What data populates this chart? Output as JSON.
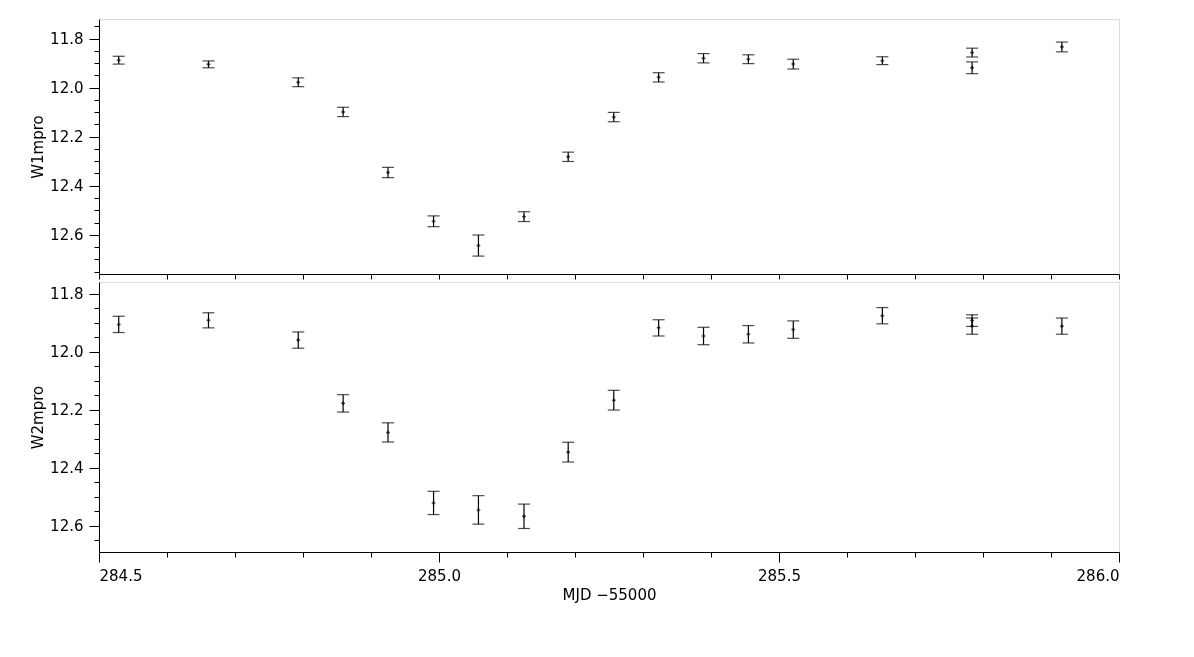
{
  "chart_data": [
    {
      "type": "scatter",
      "marker": "cross",
      "ylabel": "W1mpro",
      "tick_labels": "y",
      "grid": false,
      "x": [
        284.529,
        284.661,
        284.793,
        284.859,
        284.925,
        284.992,
        285.058,
        285.125,
        285.19,
        285.257,
        285.323,
        285.389,
        285.455,
        285.521,
        285.652,
        285.784,
        285.784,
        285.916
      ],
      "values": [
        11.888,
        11.905,
        11.978,
        12.099,
        12.346,
        12.545,
        12.644,
        12.526,
        12.282,
        12.12,
        11.958,
        11.88,
        11.884,
        11.904,
        11.89,
        11.857,
        11.919,
        11.834
      ],
      "errors": [
        0.016,
        0.014,
        0.018,
        0.019,
        0.021,
        0.022,
        0.043,
        0.02,
        0.019,
        0.019,
        0.019,
        0.019,
        0.018,
        0.02,
        0.016,
        0.018,
        0.024,
        0.02
      ],
      "xlim": [
        284.5,
        286.0
      ],
      "xticks": [
        {
          "value": 284.5,
          "label": null
        },
        {
          "value": 284.6,
          "label": null
        },
        {
          "value": 284.7,
          "label": null
        },
        {
          "value": 284.8,
          "label": null
        },
        {
          "value": 284.9,
          "label": null
        },
        {
          "value": 285,
          "label": null
        },
        {
          "value": 285.1,
          "label": null
        },
        {
          "value": 285.2,
          "label": null
        },
        {
          "value": 285.3,
          "label": null
        },
        {
          "value": 285.4,
          "label": null
        },
        {
          "value": 285.5,
          "label": null
        },
        {
          "value": 285.6,
          "label": null
        },
        {
          "value": 285.7,
          "label": null
        },
        {
          "value": 285.8,
          "label": null
        },
        {
          "value": 285.9,
          "label": null
        },
        {
          "value": 286,
          "label": null
        }
      ],
      "ylim": [
        12.76,
        11.72
      ],
      "yticks": [
        {
          "value": 11.75,
          "label": null
        },
        11.8,
        {
          "value": 11.85,
          "label": null
        },
        {
          "value": 11.9,
          "label": null
        },
        {
          "value": 11.95,
          "label": null
        },
        {
          "value": 12,
          "label": "12.0"
        },
        {
          "value": 12.05,
          "label": null
        },
        {
          "value": 12.1,
          "label": null
        },
        {
          "value": 12.15,
          "label": null
        },
        12.2,
        {
          "value": 12.25,
          "label": null
        },
        {
          "value": 12.3,
          "label": null
        },
        {
          "value": 12.35,
          "label": null
        },
        12.4,
        {
          "value": 12.45,
          "label": null
        },
        {
          "value": 12.5,
          "label": null
        },
        {
          "value": 12.55,
          "label": null
        },
        12.6,
        {
          "value": 12.65,
          "label": null
        },
        {
          "value": 12.7,
          "label": null
        },
        {
          "value": 12.75,
          "label": null
        }
      ]
    },
    {
      "type": "scatter",
      "marker": "cross",
      "ylabel": "W2mpro",
      "xlabel": "MJD −55000",
      "grid": false,
      "x": [
        284.529,
        284.661,
        284.793,
        284.859,
        284.925,
        284.992,
        285.058,
        285.125,
        285.19,
        285.257,
        285.323,
        285.389,
        285.455,
        285.521,
        285.652,
        285.784,
        285.784,
        285.916
      ],
      "values": [
        11.906,
        11.892,
        11.96,
        12.178,
        12.278,
        12.521,
        12.545,
        12.567,
        12.346,
        12.167,
        11.918,
        11.946,
        11.94,
        11.924,
        11.876,
        11.893,
        11.912,
        11.912
      ],
      "errors": [
        0.028,
        0.026,
        0.028,
        0.03,
        0.033,
        0.04,
        0.049,
        0.042,
        0.034,
        0.034,
        0.028,
        0.03,
        0.03,
        0.03,
        0.028,
        0.02,
        0.028,
        0.028
      ],
      "xlim": [
        284.5,
        286.0
      ],
      "xticks": [
        284.5,
        {
          "value": 284.6,
          "label": null
        },
        {
          "value": 284.7,
          "label": null
        },
        {
          "value": 284.8,
          "label": null
        },
        {
          "value": 284.9,
          "label": null
        },
        {
          "value": 285,
          "label": "285.0"
        },
        {
          "value": 285.1,
          "label": null
        },
        {
          "value": 285.2,
          "label": null
        },
        {
          "value": 285.3,
          "label": null
        },
        {
          "value": 285.4,
          "label": null
        },
        285.5,
        {
          "value": 285.6,
          "label": null
        },
        {
          "value": 285.7,
          "label": null
        },
        {
          "value": 285.8,
          "label": null
        },
        {
          "value": 285.9,
          "label": null
        },
        {
          "value": 286,
          "label": "286.0"
        }
      ],
      "ylim": [
        12.69,
        11.76
      ],
      "yticks": [
        11.8,
        {
          "value": 11.85,
          "label": null
        },
        {
          "value": 11.9,
          "label": null
        },
        {
          "value": 11.95,
          "label": null
        },
        {
          "value": 12,
          "label": "12.0"
        },
        {
          "value": 12.05,
          "label": null
        },
        {
          "value": 12.1,
          "label": null
        },
        {
          "value": 12.15,
          "label": null
        },
        12.2,
        {
          "value": 12.25,
          "label": null
        },
        {
          "value": 12.3,
          "label": null
        },
        {
          "value": 12.35,
          "label": null
        },
        12.4,
        {
          "value": 12.45,
          "label": null
        },
        {
          "value": 12.5,
          "label": null
        },
        {
          "value": 12.55,
          "label": null
        },
        12.6,
        {
          "value": 12.65,
          "label": null
        }
      ]
    }
  ]
}
